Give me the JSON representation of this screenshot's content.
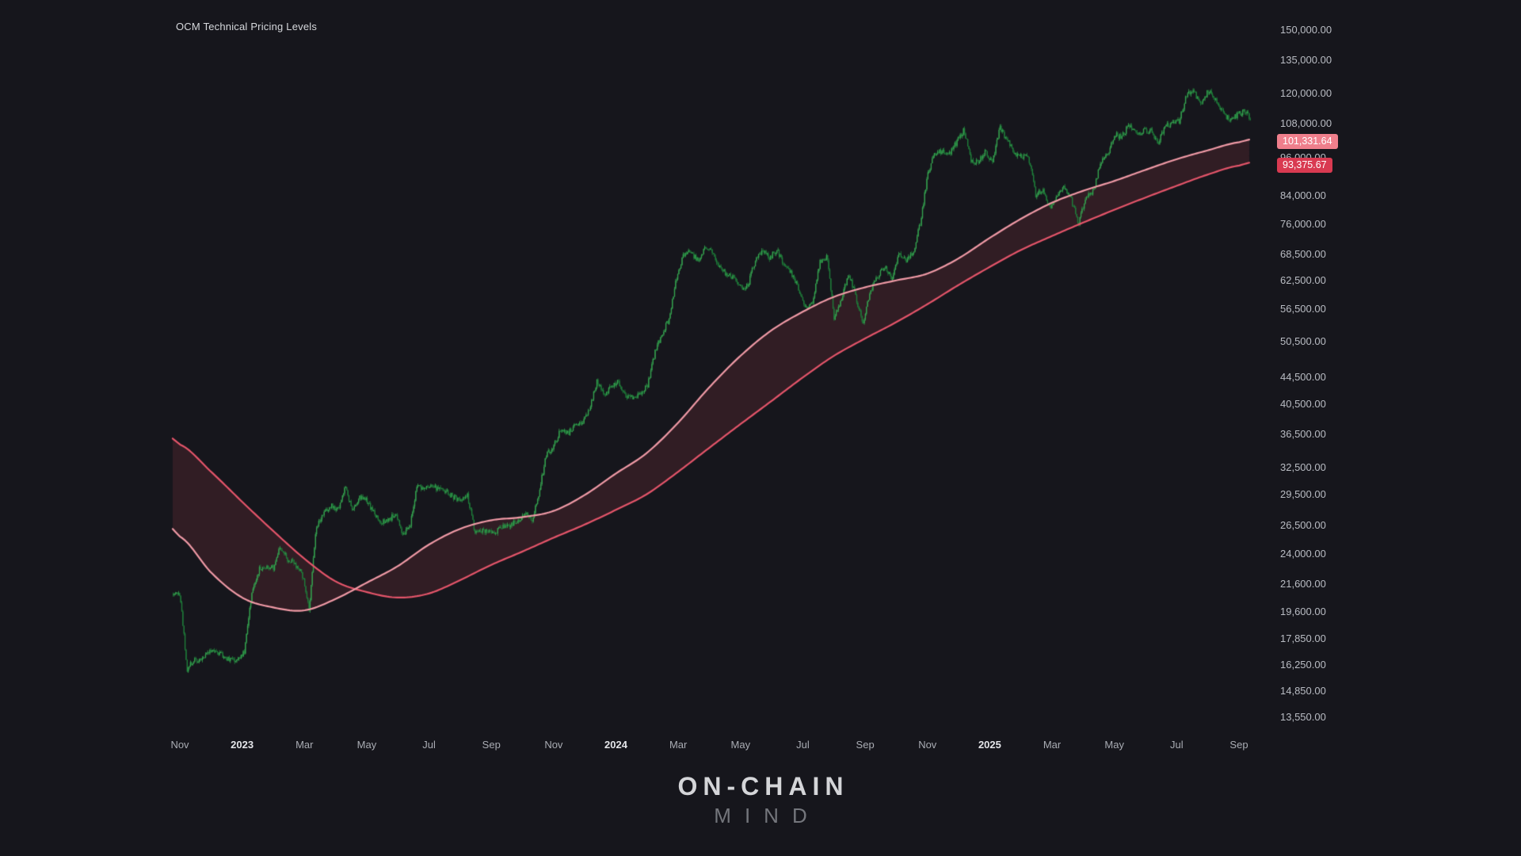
{
  "title": "OCM Technical Pricing Levels",
  "watermark": {
    "line1": "ON-CHAIN",
    "line2": "MIND"
  },
  "colors": {
    "background": "#16161c",
    "axis_text": "#b9bcc3",
    "axis_text_strong": "#e4e5e9",
    "candle_up": "#35a24f",
    "candle_down": "#1f7d3a",
    "ma_fast_line": "#f09aa6",
    "ma_slow_line": "#e4556a",
    "band_fill": "rgba(235,77,96,0.13)",
    "badge_fast": "#ef7f8c",
    "badge_slow": "#d93a51"
  },
  "price_axis": {
    "labels": [
      "150,000.00",
      "135,000.00",
      "120,000.00",
      "108,000.00",
      "96,000.00",
      "84,000.00",
      "76,000.00",
      "68,500.00",
      "62,500.00",
      "56,500.00",
      "50,500.00",
      "44,500.00",
      "40,500.00",
      "36,500.00",
      "32,500.00",
      "29,500.00",
      "26,500.00",
      "24,000.00",
      "21,600.00",
      "19,600.00",
      "17,850.00",
      "16,250.00",
      "14,850.00",
      "13,550.00"
    ],
    "badges": [
      {
        "label": "101,331.64",
        "price": 101331.64,
        "color": "#ef7f8c"
      },
      {
        "label": "93,375.67",
        "price": 93375.67,
        "color": "#d93a51"
      }
    ]
  },
  "time_axis": {
    "labels": [
      {
        "label": "Nov",
        "month": 0,
        "emphasis": false
      },
      {
        "label": "2023",
        "month": 2,
        "emphasis": true
      },
      {
        "label": "Mar",
        "month": 4,
        "emphasis": false
      },
      {
        "label": "May",
        "month": 6,
        "emphasis": false
      },
      {
        "label": "Jul",
        "month": 8,
        "emphasis": false
      },
      {
        "label": "Sep",
        "month": 10,
        "emphasis": false
      },
      {
        "label": "Nov",
        "month": 12,
        "emphasis": false
      },
      {
        "label": "2024",
        "month": 14,
        "emphasis": true
      },
      {
        "label": "Mar",
        "month": 16,
        "emphasis": false
      },
      {
        "label": "May",
        "month": 18,
        "emphasis": false
      },
      {
        "label": "Jul",
        "month": 20,
        "emphasis": false
      },
      {
        "label": "Sep",
        "month": 22,
        "emphasis": false
      },
      {
        "label": "Nov",
        "month": 24,
        "emphasis": false
      },
      {
        "label": "2025",
        "month": 26,
        "emphasis": true
      },
      {
        "label": "Mar",
        "month": 28,
        "emphasis": false
      },
      {
        "label": "May",
        "month": 30,
        "emphasis": false
      },
      {
        "label": "Jul",
        "month": 32,
        "emphasis": false
      },
      {
        "label": "Sep",
        "month": 34,
        "emphasis": false
      }
    ]
  },
  "chart_data": {
    "type": "candlestick",
    "title": "OCM Technical Pricing Levels",
    "y_scale": "log",
    "y_axis_range": [
      13550,
      150000
    ],
    "x_start": "2022-11",
    "x_end": "2025-09",
    "candle_up_color": "#35a24f",
    "candle_down_color": "#1f7d3a",
    "weekly_closes_usd": [
      20900,
      16000,
      16600,
      16500,
      17100,
      17080,
      16820,
      16550,
      16600,
      17000,
      20900,
      22700,
      23000,
      22800,
      24600,
      23500,
      23200,
      22400,
      19800,
      26500,
      27500,
      28500,
      28000,
      30300,
      27800,
      29200,
      28900,
      27700,
      26800,
      26900,
      27700,
      25800,
      26300,
      30500,
      30200,
      30300,
      30100,
      29800,
      29300,
      29000,
      29400,
      26000,
      26050,
      25900,
      25950,
      26500,
      26600,
      26900,
      27900,
      26900,
      29900,
      34100,
      35000,
      37100,
      36600,
      37700,
      37800,
      40000,
      43800,
      41700,
      43000,
      43900,
      41700,
      41600,
      42000,
      43100,
      48300,
      51700,
      54500,
      62400,
      68300,
      69000,
      67200,
      69600,
      69400,
      65700,
      63900,
      63100,
      60800,
      61500,
      66900,
      69300,
      67500,
      69600,
      66000,
      64200,
      60900,
      56600,
      57800,
      66700,
      67900,
      54500,
      58700,
      64100,
      59000,
      53500,
      60000,
      63300,
      65800,
      62800,
      68400,
      67000,
      69000,
      76500,
      90500,
      97700,
      98000,
      97300,
      101200,
      106000,
      95100,
      94300,
      98300,
      94500,
      106500,
      102100,
      97700,
      96100,
      96200,
      84400,
      86000,
      80700,
      84000,
      86900,
      82500,
      76200,
      83800,
      85200,
      94000,
      96900,
      104100,
      103200,
      107800,
      104600,
      105600,
      105500,
      101000,
      107100,
      108200,
      109200,
      119500,
      121000,
      115500,
      121500,
      117400,
      113400,
      108800,
      111500,
      113000,
      110000
    ],
    "overlays": [
      {
        "name": "ma-fast",
        "color": "#f09aa6",
        "last_value": 101331.64,
        "monthly_values": [
          25500,
          22500,
          20600,
          19900,
          19700,
          20500,
          21700,
          23000,
          24800,
          26200,
          27000,
          27300,
          27900,
          29500,
          31800,
          34200,
          38000,
          43000,
          48000,
          52500,
          56000,
          59000,
          61000,
          62500,
          64000,
          67500,
          72500,
          77500,
          82000,
          85500,
          88500,
          92000,
          95500,
          98500,
          101331.64
        ]
      },
      {
        "name": "ma-slow",
        "color": "#e4556a",
        "last_value": 93375.67,
        "monthly_values": [
          35200,
          32000,
          28800,
          26000,
          23600,
          21800,
          21000,
          20600,
          20900,
          21900,
          23100,
          24200,
          25400,
          26600,
          28000,
          29600,
          32000,
          34800,
          37800,
          41000,
          44500,
          48000,
          51000,
          54000,
          57500,
          61500,
          65500,
          69500,
          73000,
          76500,
          80000,
          83500,
          87000,
          90500,
          93375.67
        ]
      }
    ],
    "band_fill": "rgba(235,77,96,0.13)"
  }
}
